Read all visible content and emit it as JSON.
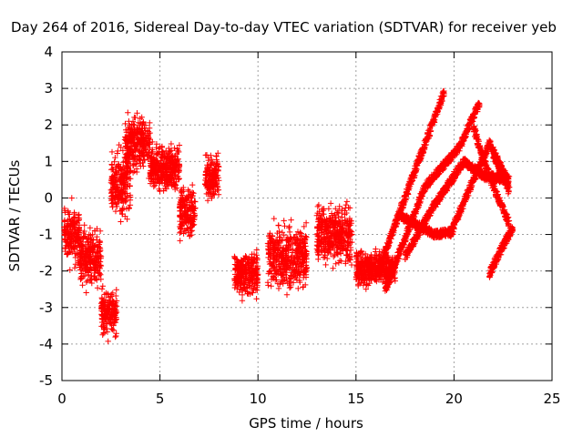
{
  "chart_data": {
    "type": "scatter",
    "title": "Day 264 of 2016, Sidereal Day-to-day VTEC variation (SDTVAR) for receiver yeb",
    "xlabel": "GPS time / hours",
    "ylabel": "SDTVAR / TECUs",
    "xlim": [
      0,
      25
    ],
    "ylim": [
      -5,
      4
    ],
    "x_ticks": [
      "0",
      "5",
      "10",
      "15",
      "20",
      "25"
    ],
    "y_ticks": [
      "-5",
      "-4",
      "-3",
      "-2",
      "-1",
      "0",
      "1",
      "2",
      "3",
      "4"
    ],
    "grid": true,
    "marker": "+",
    "color": "#ff0000",
    "clusters": [
      {
        "x_range": [
          0.1,
          0.9
        ],
        "y_center": -1.0,
        "y_spread": 1.8
      },
      {
        "x_range": [
          0.9,
          2.0
        ],
        "y_center": -1.6,
        "y_spread": 1.9
      },
      {
        "x_range": [
          2.0,
          2.8
        ],
        "y_center": -3.1,
        "y_spread": 1.2
      },
      {
        "x_range": [
          2.5,
          3.5
        ],
        "y_center": 0.3,
        "y_spread": 2.0
      },
      {
        "x_range": [
          3.2,
          4.5
        ],
        "y_center": 1.5,
        "y_spread": 1.8
      },
      {
        "x_range": [
          4.5,
          6.0
        ],
        "y_center": 0.8,
        "y_spread": 1.4
      },
      {
        "x_range": [
          6.0,
          6.8
        ],
        "y_center": -0.4,
        "y_spread": 1.6
      },
      {
        "x_range": [
          7.3,
          8.0
        ],
        "y_center": 0.6,
        "y_spread": 1.5
      },
      {
        "x_range": [
          8.8,
          10.0
        ],
        "y_center": -2.0,
        "y_spread": 1.3
      },
      {
        "x_range": [
          10.5,
          12.5
        ],
        "y_center": -1.6,
        "y_spread": 2.0
      },
      {
        "x_range": [
          13.0,
          14.8
        ],
        "y_center": -1.0,
        "y_spread": 1.9
      },
      {
        "x_range": [
          15.0,
          17.0
        ],
        "y_center": -1.9,
        "y_spread": 0.9
      }
    ],
    "curves": [
      {
        "x": [
          16.0,
          17.5,
          19.5
        ],
        "y": [
          -2.2,
          0.0,
          2.9
        ]
      },
      {
        "x": [
          16.5,
          18.5,
          20.3,
          21.3
        ],
        "y": [
          -2.5,
          0.3,
          1.4,
          2.6
        ]
      },
      {
        "x": [
          17.5,
          19.0,
          20.5,
          21.5,
          22.8
        ],
        "y": [
          -1.6,
          -0.2,
          1.0,
          0.6,
          0.5
        ]
      },
      {
        "x": [
          17.3,
          19.0,
          20.0
        ],
        "y": [
          -0.5,
          -1.0,
          -0.9
        ]
      },
      {
        "x": [
          19.8,
          21.0,
          21.8,
          22.8
        ],
        "y": [
          -1.0,
          0.5,
          1.5,
          0.4
        ]
      },
      {
        "x": [
          21.0,
          21.8,
          22.8
        ],
        "y": [
          1.9,
          0.6,
          -0.7
        ]
      },
      {
        "x": [
          21.8,
          22.5,
          23.0
        ],
        "y": [
          -2.1,
          -1.3,
          -0.8
        ]
      },
      {
        "x": [
          22.0,
          22.8
        ],
        "y": [
          1.2,
          0.2
        ]
      }
    ]
  }
}
